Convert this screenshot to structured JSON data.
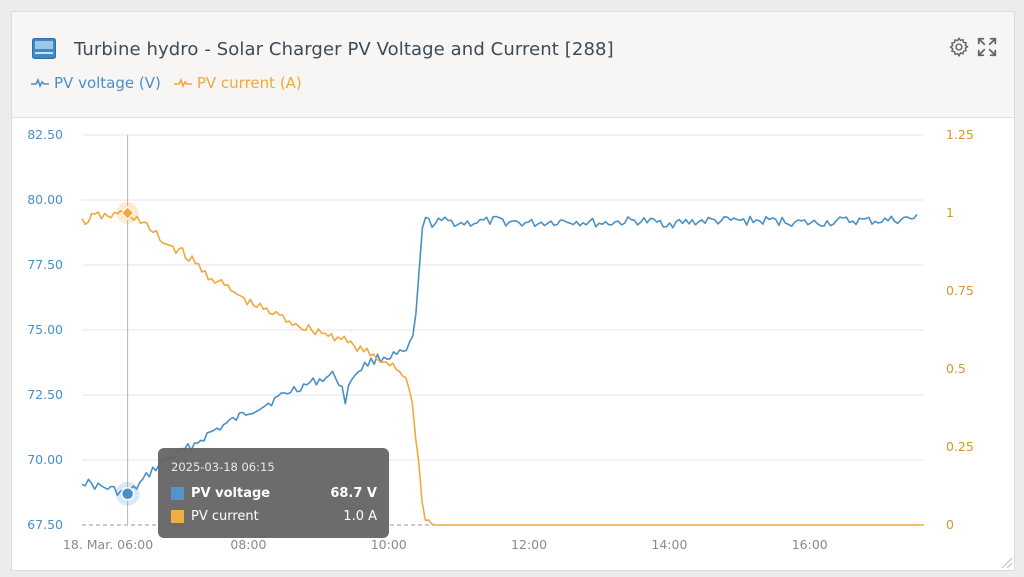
{
  "header": {
    "title": "Turbine hydro - Solar Charger PV Voltage and Current [288]"
  },
  "legend": [
    {
      "label": "PV voltage (V)",
      "color": "#4a90c8"
    },
    {
      "label": "PV current (A)",
      "color": "#f0a93a"
    }
  ],
  "tooltip": {
    "time": "2025-03-18 06:15",
    "rows": [
      {
        "label": "PV voltage",
        "value": "68.7 V",
        "color": "#4a90c8"
      },
      {
        "label": "PV current",
        "value": "1.0 A",
        "color": "#f0a93a"
      }
    ]
  },
  "chart_data": {
    "type": "line",
    "x_tick_labels": [
      "18. Mar. 06:00",
      "08:00",
      "10:00",
      "12:00",
      "14:00",
      "16:00"
    ],
    "x_tick_hours": [
      6,
      8,
      10,
      12,
      14,
      16
    ],
    "xlim_hours": [
      5.6,
      17.6
    ],
    "y_left": {
      "ticks": [
        "67.50",
        "70.00",
        "72.50",
        "75.00",
        "77.50",
        "80.00",
        "82.50"
      ],
      "lim": [
        67.5,
        82.5
      ],
      "color": "#4a90c8"
    },
    "y_right": {
      "ticks": [
        "0",
        "0.25",
        "0.5",
        "0.75",
        "1",
        "1.25"
      ],
      "lim": [
        0,
        1.25
      ],
      "color": "#d8962e"
    },
    "grid": true,
    "crosshair_hour": 6.25,
    "series": [
      {
        "name": "PV voltage (V)",
        "axis": "left",
        "color": "#4a90c8",
        "x": [
          5.6,
          5.8,
          6.0,
          6.1,
          6.25,
          6.4,
          6.5,
          6.6,
          6.7,
          6.8,
          7.0,
          7.2,
          7.4,
          7.6,
          7.8,
          8.0,
          8.2,
          8.4,
          8.6,
          8.8,
          9.0,
          9.2,
          9.3,
          9.35,
          9.45,
          9.6,
          9.8,
          10.0,
          10.2,
          10.3,
          10.35,
          10.4,
          10.45,
          10.5,
          10.6,
          10.8,
          11.0,
          11.5,
          12.0,
          12.5,
          13.0,
          13.5,
          14.0,
          14.5,
          15.0,
          15.5,
          16.0,
          16.5,
          17.0,
          17.5
        ],
        "y": [
          69.2,
          69.0,
          68.9,
          68.8,
          68.7,
          69.0,
          69.3,
          69.6,
          69.8,
          70.0,
          70.3,
          70.6,
          71.0,
          71.3,
          71.6,
          71.9,
          72.1,
          72.4,
          72.7,
          72.9,
          73.1,
          73.3,
          72.8,
          72.3,
          73.2,
          73.6,
          73.9,
          74.0,
          74.1,
          74.5,
          75.2,
          77.0,
          79.0,
          79.2,
          79.1,
          79.2,
          79.1,
          79.2,
          79.1,
          79.2,
          79.1,
          79.2,
          79.1,
          79.2,
          79.2,
          79.2,
          79.1,
          79.2,
          79.2,
          79.3
        ]
      },
      {
        "name": "PV current (A)",
        "axis": "right",
        "color": "#f0a93a",
        "x": [
          5.6,
          5.8,
          6.0,
          6.2,
          6.25,
          6.4,
          6.6,
          6.8,
          7.0,
          7.2,
          7.4,
          7.6,
          7.8,
          8.0,
          8.2,
          8.4,
          8.6,
          8.8,
          9.0,
          9.2,
          9.3,
          9.4,
          9.6,
          9.8,
          10.0,
          10.2,
          10.3,
          10.4,
          10.45,
          10.5,
          10.6,
          11.0,
          12.0,
          13.0,
          14.0,
          15.0,
          16.0,
          17.0,
          17.6
        ],
        "y": [
          0.97,
          0.99,
          0.99,
          1.0,
          1.0,
          0.98,
          0.94,
          0.9,
          0.88,
          0.84,
          0.8,
          0.77,
          0.74,
          0.71,
          0.69,
          0.67,
          0.65,
          0.63,
          0.62,
          0.6,
          0.61,
          0.58,
          0.56,
          0.53,
          0.52,
          0.48,
          0.4,
          0.2,
          0.06,
          0.02,
          0.0,
          0.0,
          0.0,
          0.0,
          0.0,
          0.0,
          0.0,
          0.0,
          0.0
        ]
      }
    ]
  }
}
